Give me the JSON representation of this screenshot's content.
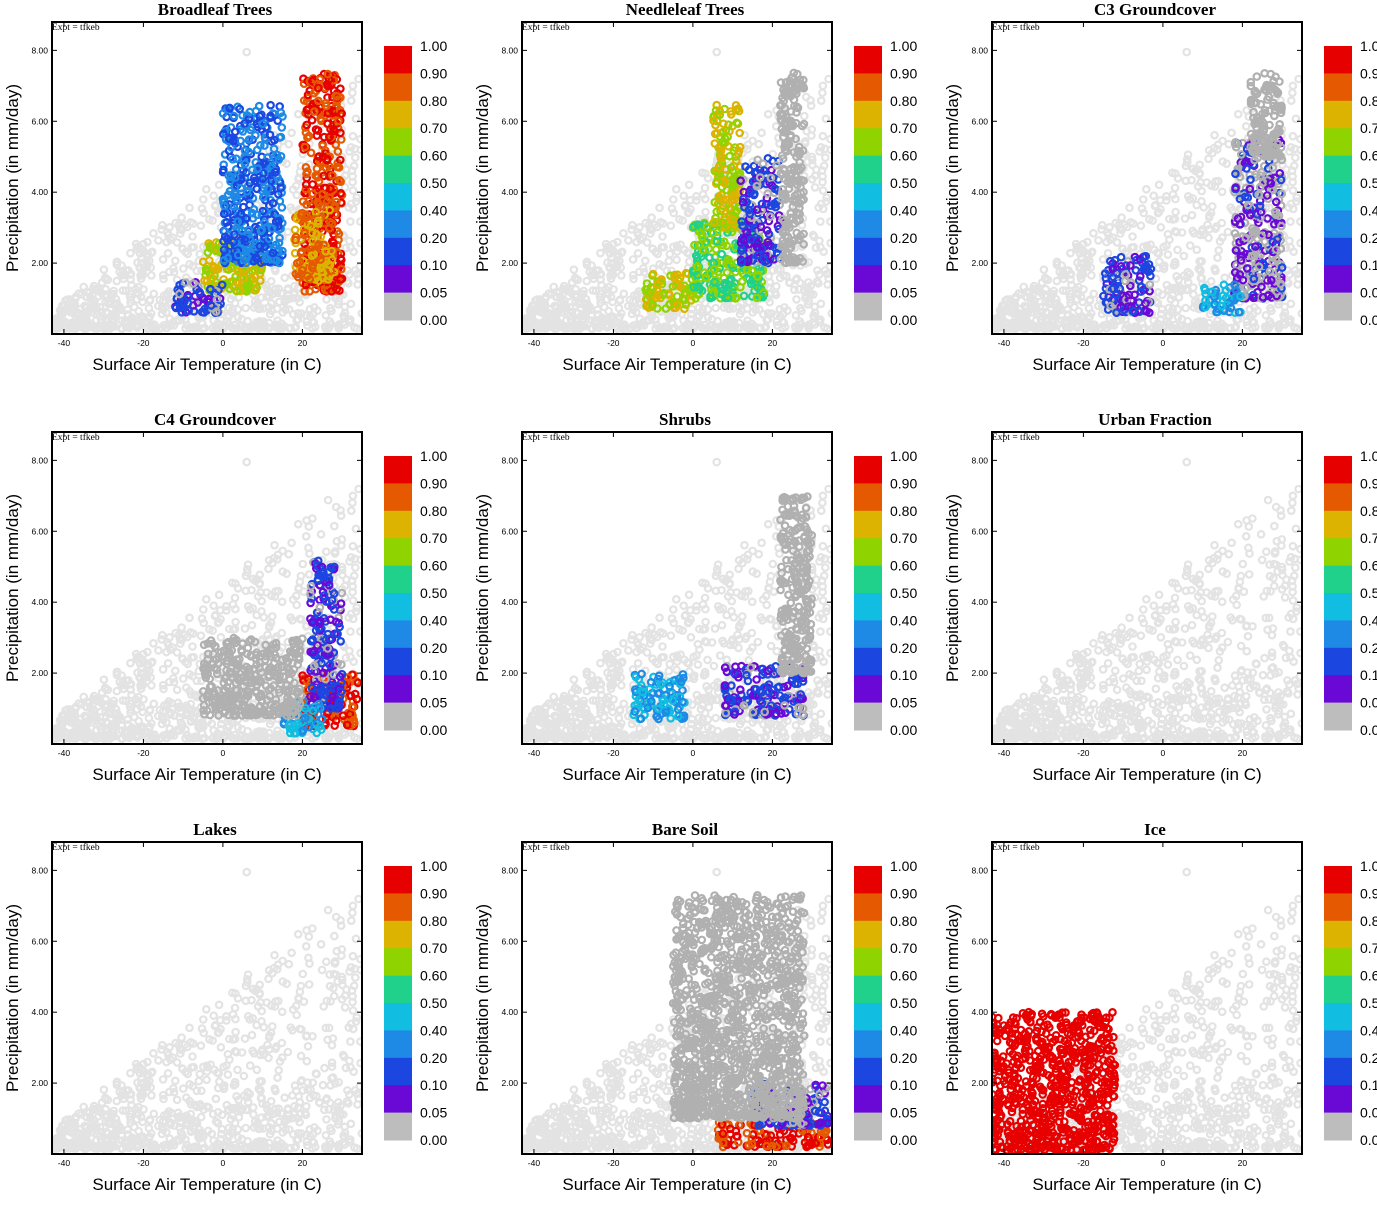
{
  "figure": {
    "expt_label": "Expt = tfkeb",
    "xlabel": "Surface Air Temperature (in C)",
    "ylabel": "Precipitation (in mm/day)",
    "x_ticks": [
      "-40",
      "-20",
      "0",
      "20"
    ],
    "y_ticks": [
      "2.00",
      "4.00",
      "6.00",
      "8.00"
    ],
    "colorbar_labels": [
      "1.00",
      "0.90",
      "0.80",
      "0.70",
      "0.60",
      "0.50",
      "0.40",
      "0.20",
      "0.10",
      "0.05",
      "0.00"
    ],
    "colorbar_colors": [
      "#e60000",
      "#e55a00",
      "#dcb300",
      "#8fd400",
      "#1fd18a",
      "#11bde0",
      "#1e8ae6",
      "#1c46e0",
      "#6a08d6",
      "#bdbdbd"
    ],
    "background_point_color": "#e3e3e3",
    "zero_point_color": "#b0b0b0"
  },
  "chart_data": [
    {
      "type": "scatter",
      "title": "Broadleaf Trees",
      "xlabel": "Surface Air Temperature (in C)",
      "ylabel": "Precipitation (in mm/day)",
      "xlim": [
        -43,
        35
      ],
      "ylim": [
        0,
        8.8
      ],
      "clusters": [
        {
          "x": [
            20,
            30
          ],
          "y": [
            1.2,
            7.4
          ],
          "fraction": 0.9
        },
        {
          "x": [
            18,
            28
          ],
          "y": [
            1.5,
            3.5
          ],
          "fraction": 0.8
        },
        {
          "x": [
            -5,
            10
          ],
          "y": [
            1.2,
            2.6
          ],
          "fraction": 0.7
        },
        {
          "x": [
            0,
            15
          ],
          "y": [
            2.0,
            6.5
          ],
          "fraction": 0.2
        },
        {
          "x": [
            -12,
            0
          ],
          "y": [
            0.6,
            1.5
          ],
          "fraction": 0.1
        }
      ]
    },
    {
      "type": "scatter",
      "title": "Needleleaf Trees",
      "xlabel": "Surface Air Temperature (in C)",
      "ylabel": "Precipitation (in mm/day)",
      "xlim": [
        -43,
        35
      ],
      "ylim": [
        0,
        8.8
      ],
      "clusters": [
        {
          "x": [
            -12,
            0
          ],
          "y": [
            0.7,
            1.8
          ],
          "fraction": 0.7
        },
        {
          "x": [
            0,
            18
          ],
          "y": [
            1.0,
            3.2
          ],
          "fraction": 0.6
        },
        {
          "x": [
            5,
            12
          ],
          "y": [
            3.0,
            6.5
          ],
          "fraction": 0.7
        },
        {
          "x": [
            12,
            22
          ],
          "y": [
            2.0,
            5.0
          ],
          "fraction": 0.1
        },
        {
          "x": [
            22,
            28
          ],
          "y": [
            2.0,
            7.4
          ],
          "fraction": 0.0
        }
      ]
    },
    {
      "type": "scatter",
      "title": "C3 Groundcover",
      "xlabel": "Surface Air Temperature (in C)",
      "ylabel": "Precipitation (in mm/day)",
      "xlim": [
        -43,
        35
      ],
      "ylim": [
        0,
        8.8
      ],
      "clusters": [
        {
          "x": [
            -15,
            -3
          ],
          "y": [
            0.6,
            2.2
          ],
          "fraction": 0.1
        },
        {
          "x": [
            18,
            30
          ],
          "y": [
            1.0,
            5.5
          ],
          "fraction": 0.05
        },
        {
          "x": [
            10,
            20
          ],
          "y": [
            0.6,
            1.4
          ],
          "fraction": 0.4
        },
        {
          "x": [
            22,
            30
          ],
          "y": [
            5.0,
            7.4
          ],
          "fraction": 0.0
        }
      ]
    },
    {
      "type": "scatter",
      "title": "C4 Groundcover",
      "xlabel": "Surface Air Temperature (in C)",
      "ylabel": "Precipitation (in mm/day)",
      "xlim": [
        -43,
        35
      ],
      "ylim": [
        0,
        8.8
      ],
      "clusters": [
        {
          "x": [
            20,
            34
          ],
          "y": [
            0.5,
            2.0
          ],
          "fraction": 0.9
        },
        {
          "x": [
            22,
            30
          ],
          "y": [
            1.0,
            5.2
          ],
          "fraction": 0.1
        },
        {
          "x": [
            15,
            25
          ],
          "y": [
            0.3,
            1.2
          ],
          "fraction": 0.4
        },
        {
          "x": [
            -5,
            20
          ],
          "y": [
            0.8,
            3.0
          ],
          "fraction": 0.0
        }
      ]
    },
    {
      "type": "scatter",
      "title": "Shrubs",
      "xlabel": "Surface Air Temperature (in C)",
      "ylabel": "Precipitation (in mm/day)",
      "xlim": [
        -43,
        35
      ],
      "ylim": [
        0,
        8.8
      ],
      "clusters": [
        {
          "x": [
            -15,
            -2
          ],
          "y": [
            0.7,
            2.0
          ],
          "fraction": 0.4
        },
        {
          "x": [
            8,
            28
          ],
          "y": [
            0.8,
            2.2
          ],
          "fraction": 0.1
        },
        {
          "x": [
            22,
            30
          ],
          "y": [
            2.0,
            7.0
          ],
          "fraction": 0.0
        }
      ]
    },
    {
      "type": "scatter",
      "title": "Urban Fraction",
      "xlabel": "Surface Air Temperature (in C)",
      "ylabel": "Precipitation (in mm/day)",
      "xlim": [
        -43,
        35
      ],
      "ylim": [
        0,
        8.8
      ],
      "clusters": []
    },
    {
      "type": "scatter",
      "title": "Lakes",
      "xlabel": "Surface Air Temperature (in C)",
      "ylabel": "Precipitation (in mm/day)",
      "xlim": [
        -43,
        35
      ],
      "ylim": [
        0,
        8.8
      ],
      "clusters": []
    },
    {
      "type": "scatter",
      "title": "Bare Soil",
      "xlabel": "Surface Air Temperature (in C)",
      "ylabel": "Precipitation (in mm/day)",
      "xlim": [
        -43,
        35
      ],
      "ylim": [
        0,
        8.8
      ],
      "clusters": [
        {
          "x": [
            6,
            34
          ],
          "y": [
            0.2,
            0.9
          ],
          "fraction": 0.9
        },
        {
          "x": [
            15,
            34
          ],
          "y": [
            0.8,
            2.0
          ],
          "fraction": 0.1
        },
        {
          "x": [
            -5,
            28
          ],
          "y": [
            1.0,
            7.3
          ],
          "fraction": 0.0
        }
      ]
    },
    {
      "type": "scatter",
      "title": "Ice",
      "xlabel": "Surface Air Temperature (in C)",
      "ylabel": "Precipitation (in mm/day)",
      "xlim": [
        -43,
        35
      ],
      "ylim": [
        0,
        8.8
      ],
      "clusters": [
        {
          "x": [
            -43,
            -12
          ],
          "y": [
            0.1,
            4.0
          ],
          "fraction": 1.0
        }
      ]
    }
  ]
}
